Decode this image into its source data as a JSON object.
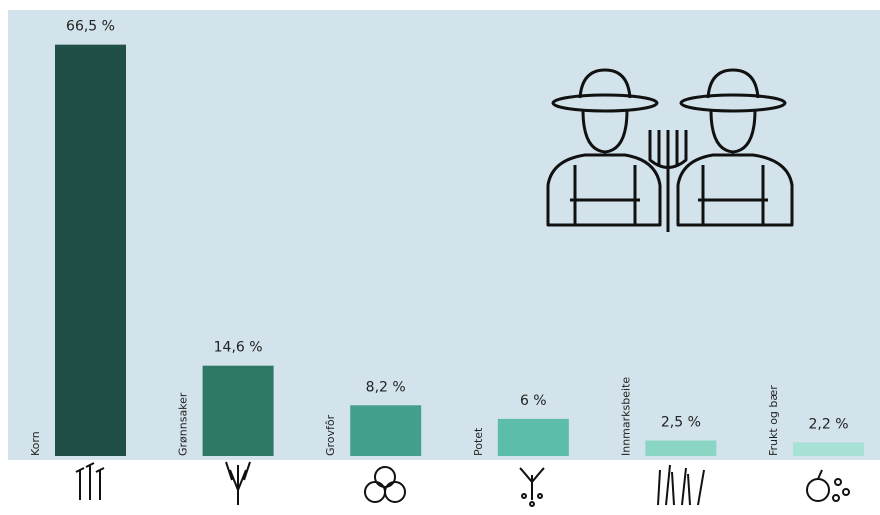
{
  "chart_data": {
    "type": "bar",
    "categories": [
      "Korn",
      "Grønnsaker",
      "Grovfôr",
      "Potet",
      "Innmarksbeite",
      "Frukt og bær"
    ],
    "values": [
      66.5,
      14.6,
      8.2,
      6,
      2.5,
      2.2
    ],
    "value_labels": [
      "66,5 %",
      "14,6 %",
      "8,2 %",
      "6 %",
      "2,5 %",
      "2,2 %"
    ],
    "colors": [
      "#1f4f46",
      "#2e7866",
      "#43a08d",
      "#5cbdaa",
      "#8ad5c4",
      "#a8e1d5"
    ],
    "ylim": [
      0,
      70
    ]
  }
}
